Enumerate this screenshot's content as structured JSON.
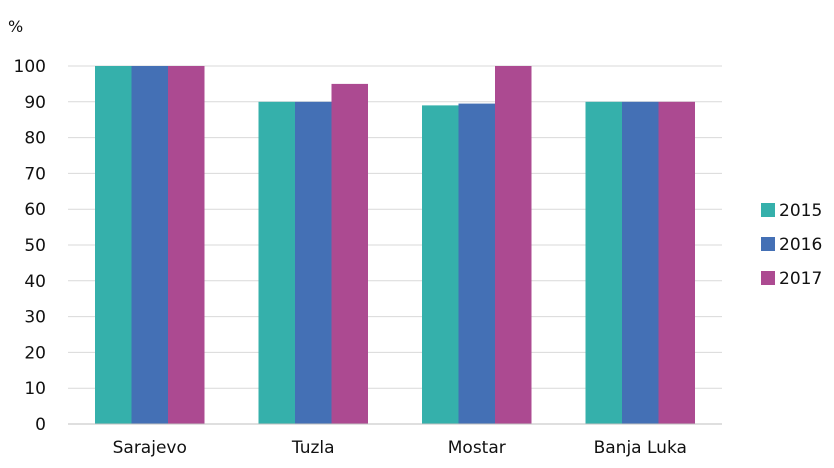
{
  "chart_data": {
    "type": "bar",
    "unit_label": "%",
    "categories": [
      "Sarajevo",
      "Tuzla",
      "Mostar",
      "Banja Luka"
    ],
    "series": [
      {
        "name": "2015",
        "color": "#35b0ab",
        "values": [
          100,
          90,
          89,
          90
        ]
      },
      {
        "name": "2016",
        "color": "#4470b5",
        "values": [
          100,
          90,
          89.5,
          90
        ]
      },
      {
        "name": "2017",
        "color": "#ac4a91",
        "values": [
          100,
          95,
          100,
          90
        ]
      }
    ],
    "ylim": [
      0,
      100
    ],
    "yticks": [
      0,
      10,
      20,
      30,
      40,
      50,
      60,
      70,
      80,
      90,
      100
    ],
    "grid": true,
    "legend": "right"
  }
}
